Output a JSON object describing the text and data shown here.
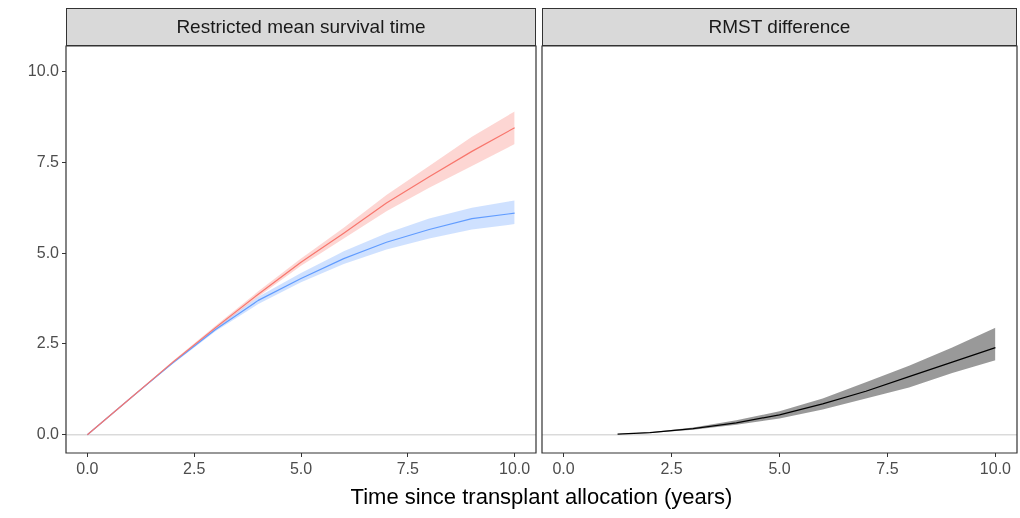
{
  "chart_data": [
    {
      "type": "line",
      "title": "Restricted mean survival time",
      "xlabel": "Time since transplant allocation (years)",
      "xlim": [
        -0.5,
        10.5
      ],
      "ylim": [
        -0.5,
        10.7
      ],
      "xticks": [
        {
          "value": 0,
          "label": "0.0"
        },
        {
          "value": 2.5,
          "label": "2.5"
        },
        {
          "value": 5,
          "label": "5.0"
        },
        {
          "value": 7.5,
          "label": "7.5"
        },
        {
          "value": 10,
          "label": "10.0"
        }
      ],
      "yticks": [
        {
          "value": 0,
          "label": "0.0"
        },
        {
          "value": 2.5,
          "label": "2.5"
        },
        {
          "value": 5,
          "label": "5.0"
        },
        {
          "value": 7.5,
          "label": "7.5"
        },
        {
          "value": 10,
          "label": "10.0"
        }
      ],
      "grid": false,
      "legend": false,
      "marker": "none",
      "line_style": "solid",
      "ref_lines": [
        {
          "axis": "y",
          "value": 0,
          "label": null,
          "color": "#c8c8c8"
        }
      ],
      "series": [
        {
          "color": "#f8766d",
          "x": [
            0,
            1,
            2,
            3,
            4,
            5,
            6,
            7,
            8,
            9,
            10
          ],
          "values": [
            0,
            1,
            2,
            2.95,
            3.87,
            4.75,
            5.55,
            6.38,
            7.1,
            7.8,
            8.45
          ],
          "lower": [
            0,
            1,
            1.97,
            2.9,
            3.8,
            4.65,
            5.4,
            6.15,
            6.8,
            7.4,
            8.0
          ],
          "upper": [
            0,
            1,
            2.03,
            3.0,
            3.95,
            4.85,
            5.7,
            6.6,
            7.4,
            8.2,
            8.9
          ]
        },
        {
          "color": "#619cff",
          "x": [
            0,
            1,
            2,
            3,
            4,
            5,
            6,
            7,
            8,
            9,
            10
          ],
          "values": [
            0,
            1,
            1.98,
            2.9,
            3.7,
            4.3,
            4.85,
            5.3,
            5.65,
            5.95,
            6.1
          ],
          "lower": [
            0,
            1,
            1.95,
            2.85,
            3.6,
            4.2,
            4.7,
            5.1,
            5.4,
            5.65,
            5.8
          ],
          "upper": [
            0,
            1,
            2.0,
            2.95,
            3.8,
            4.45,
            5.05,
            5.55,
            5.95,
            6.25,
            6.45
          ]
        }
      ]
    },
    {
      "type": "line",
      "title": "RMST difference",
      "xlim": [
        -0.5,
        10.5
      ],
      "ylim": [
        -0.5,
        10.7
      ],
      "tick_labels": "x",
      "xticks": [
        {
          "value": 0,
          "label": "0.0"
        },
        {
          "value": 2.5,
          "label": "2.5"
        },
        {
          "value": 5,
          "label": "5.0"
        },
        {
          "value": 7.5,
          "label": "7.5"
        },
        {
          "value": 10,
          "label": "10.0"
        }
      ],
      "grid": false,
      "legend": false,
      "marker": "none",
      "line_style": "solid",
      "ref_lines": [
        {
          "axis": "y",
          "value": 0,
          "label": null,
          "color": "#c8c8c8"
        }
      ],
      "series": [
        {
          "color": "#000000",
          "x": [
            1.25,
            2,
            3,
            4,
            5,
            6,
            7,
            8,
            9,
            10
          ],
          "values": [
            0.02,
            0.06,
            0.17,
            0.33,
            0.55,
            0.85,
            1.2,
            1.6,
            2.0,
            2.4
          ],
          "lower": [
            0.02,
            0.05,
            0.14,
            0.28,
            0.45,
            0.7,
            1.0,
            1.3,
            1.7,
            2.05
          ],
          "upper": [
            0.02,
            0.07,
            0.2,
            0.4,
            0.65,
            1.0,
            1.45,
            1.9,
            2.4,
            2.95
          ]
        }
      ]
    }
  ]
}
